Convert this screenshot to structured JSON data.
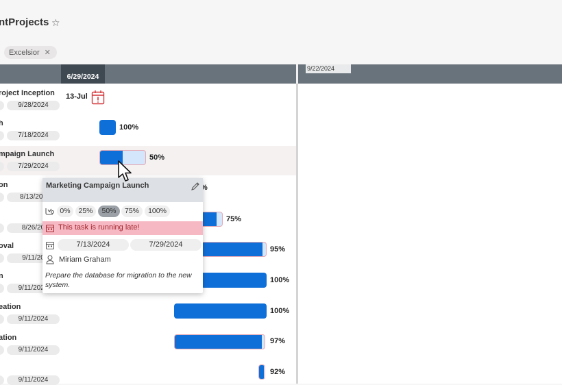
{
  "page": {
    "title": "ntProjects",
    "filter_chip": "Excelsior"
  },
  "timeline": {
    "header_dates": [
      "6/29/2024",
      "9/22/2024"
    ]
  },
  "tasks": [
    {
      "name": "roject Inception",
      "date": "9/28/2024",
      "milestone_label": "13-Jul"
    },
    {
      "name": "h",
      "date": "7/18/2024",
      "percent_label": "100%",
      "progress": 1.0
    },
    {
      "name": "mpaign Launch",
      "date": "7/29/2024",
      "percent_label": "50%",
      "progress": 0.5
    },
    {
      "name": "on",
      "date": "8/13/202",
      "percent_label": "%"
    },
    {
      "name": "",
      "date": "8/26/20",
      "percent_label": "75%",
      "progress": 0.75
    },
    {
      "name": "oval",
      "date": "9/11/20",
      "percent_label": "95%",
      "progress": 0.95
    },
    {
      "name": "n",
      "date": "9/11/2024",
      "percent_label": "100%",
      "progress": 1.0
    },
    {
      "name": "eation",
      "date": "9/11/2024",
      "percent_label": "100%",
      "progress": 1.0
    },
    {
      "name": "ation",
      "date": "9/11/2024",
      "percent_label": "97%",
      "progress": 0.97
    },
    {
      "name": "",
      "date": "9/11/2024",
      "percent_label": "92%",
      "progress": 0.92
    }
  ],
  "card": {
    "title": "Marketing Campaign Launch",
    "progress_options": [
      "0%",
      "25%",
      "50%",
      "75%",
      "100%"
    ],
    "selected_progress": "50%",
    "late_message": "This task is running late!",
    "start_date": "7/13/2024",
    "end_date": "7/29/2024",
    "assignee": "Miriam Graham",
    "description": "Prepare the database for migration to the new system."
  },
  "icons": {
    "star": "star-icon",
    "calendar_alert": "calendar-alert-icon",
    "edit": "pencil-icon",
    "progress": "progress-icon",
    "late": "calendar-icon",
    "dates": "calendar-icon",
    "person": "person-icon",
    "cursor": "cursor-icon"
  },
  "colors": {
    "bar": "#0f6fd8",
    "bar_partial_bg": "#d4e6fb",
    "header": "#68737b",
    "late_bg": "#f6b9c4",
    "milestone": "#d13438"
  }
}
